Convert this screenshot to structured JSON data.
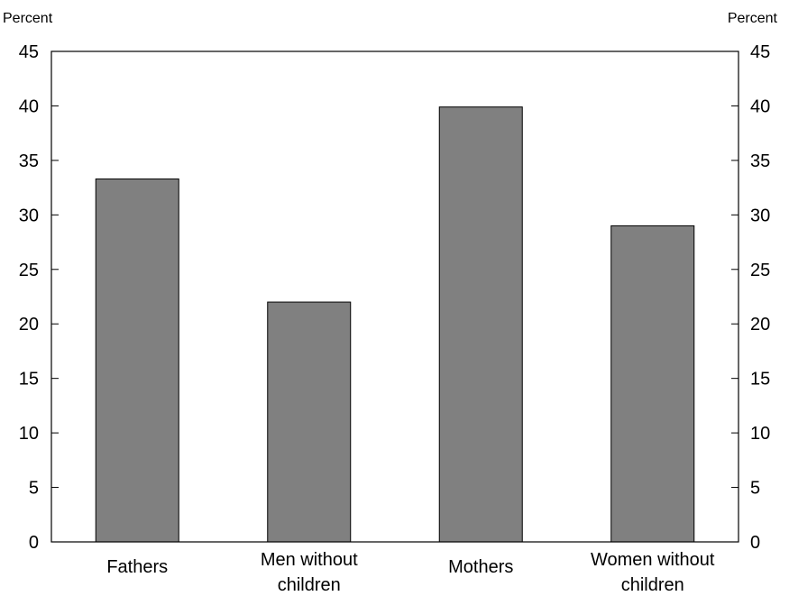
{
  "chart_data": {
    "type": "bar",
    "categories": [
      [
        "Fathers"
      ],
      [
        "Men without",
        "children"
      ],
      [
        "Mothers"
      ],
      [
        "Women without",
        "children"
      ]
    ],
    "values": [
      33.3,
      22.0,
      39.9,
      29.0
    ],
    "left_unit_label": "Percent",
    "right_unit_label": "Percent",
    "ylim": [
      0,
      45
    ],
    "yticks": [
      "0",
      "5",
      "10",
      "15",
      "20",
      "25",
      "30",
      "35",
      "40",
      "45"
    ],
    "bar_color": "#808080",
    "grid": false,
    "legend": "none"
  }
}
